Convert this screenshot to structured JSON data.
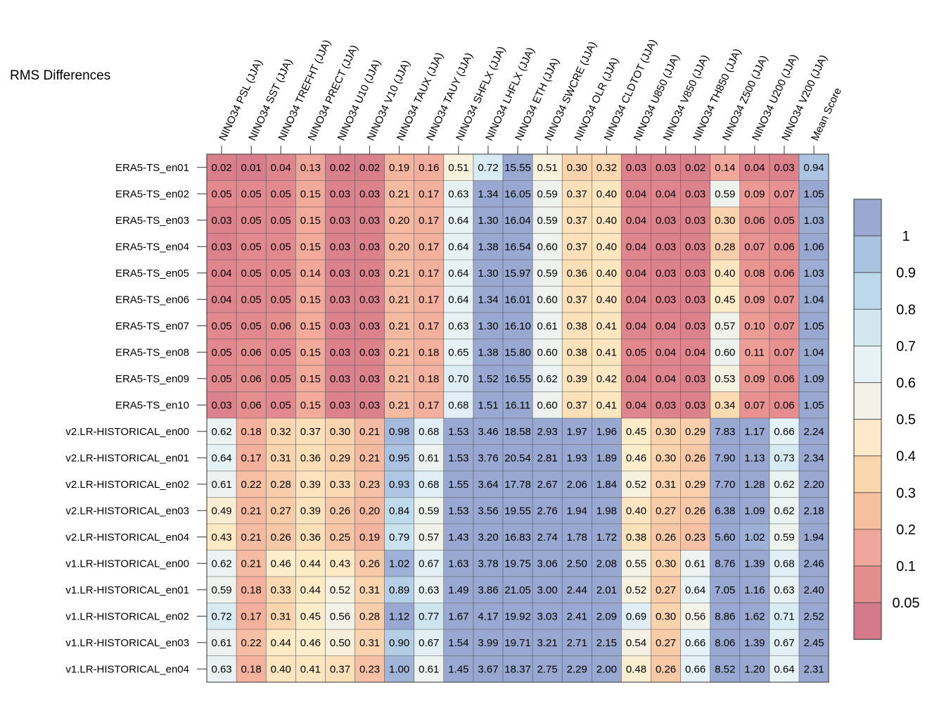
{
  "chart_data": {
    "type": "heatmap",
    "title": "RMS Differences",
    "columns": [
      "NINO34 PSL (JJA)",
      "NINO34 SST (JJA)",
      "NINO34 TREFHT (JJA)",
      "NINO34 PRECT (JJA)",
      "NINO34 U10 (JJA)",
      "NINO34 V10 (JJA)",
      "NINO34 TAUX (JJA)",
      "NINO34 TAUY (JJA)",
      "NINO34 SHFLX (JJA)",
      "NINO34 LHFLX (JJA)",
      "NINO34 ETH (JJA)",
      "NINO34 SWCRE (JJA)",
      "NINO34 OLR (JJA)",
      "NINO34 CLDTOT (JJA)",
      "NINO34 U850 (JJA)",
      "NINO34 V850 (JJA)",
      "NINO34 TH850 (JJA)",
      "NINO34 Z500 (JJA)",
      "NINO34 U200 (JJA)",
      "NINO34 V200 (JJA)",
      "Mean Score"
    ],
    "rows": [
      "ERA5-TS_en01",
      "ERA5-TS_en02",
      "ERA5-TS_en03",
      "ERA5-TS_en04",
      "ERA5-TS_en05",
      "ERA5-TS_en06",
      "ERA5-TS_en07",
      "ERA5-TS_en08",
      "ERA5-TS_en09",
      "ERA5-TS_en10",
      "v2.LR-HISTORICAL_en00",
      "v2.LR-HISTORICAL_en01",
      "v2.LR-HISTORICAL_en02",
      "v2.LR-HISTORICAL_en03",
      "v2.LR-HISTORICAL_en04",
      "v1.LR-HISTORICAL_en00",
      "v1.LR-HISTORICAL_en01",
      "v1.LR-HISTORICAL_en02",
      "v1.LR-HISTORICAL_en03",
      "v1.LR-HISTORICAL_en04"
    ],
    "values": [
      [
        "0.02",
        "0.01",
        "0.04",
        "0.13",
        "0.02",
        "0.02",
        "0.19",
        "0.16",
        "0.51",
        "0.72",
        "15.55",
        "0.51",
        "0.30",
        "0.32",
        "0.03",
        "0.03",
        "0.02",
        "0.14",
        "0.04",
        "0.03",
        "0.94"
      ],
      [
        "0.05",
        "0.05",
        "0.05",
        "0.15",
        "0.03",
        "0.03",
        "0.21",
        "0.17",
        "0.63",
        "1.34",
        "16.05",
        "0.59",
        "0.37",
        "0.40",
        "0.04",
        "0.04",
        "0.03",
        "0.59",
        "0.09",
        "0.07",
        "1.05"
      ],
      [
        "0.03",
        "0.05",
        "0.05",
        "0.15",
        "0.03",
        "0.03",
        "0.20",
        "0.17",
        "0.64",
        "1.30",
        "16.04",
        "0.59",
        "0.37",
        "0.40",
        "0.04",
        "0.03",
        "0.03",
        "0.30",
        "0.06",
        "0.05",
        "1.03"
      ],
      [
        "0.03",
        "0.05",
        "0.05",
        "0.15",
        "0.03",
        "0.03",
        "0.20",
        "0.17",
        "0.64",
        "1.38",
        "16.54",
        "0.60",
        "0.37",
        "0.40",
        "0.04",
        "0.03",
        "0.03",
        "0.28",
        "0.07",
        "0.06",
        "1.06"
      ],
      [
        "0.04",
        "0.05",
        "0.05",
        "0.14",
        "0.03",
        "0.03",
        "0.21",
        "0.17",
        "0.64",
        "1.30",
        "15.97",
        "0.59",
        "0.36",
        "0.40",
        "0.04",
        "0.03",
        "0.03",
        "0.40",
        "0.08",
        "0.06",
        "1.03"
      ],
      [
        "0.04",
        "0.05",
        "0.05",
        "0.15",
        "0.03",
        "0.03",
        "0.21",
        "0.17",
        "0.64",
        "1.34",
        "16.01",
        "0.60",
        "0.37",
        "0.40",
        "0.04",
        "0.03",
        "0.03",
        "0.45",
        "0.09",
        "0.07",
        "1.04"
      ],
      [
        "0.05",
        "0.05",
        "0.06",
        "0.15",
        "0.03",
        "0.03",
        "0.21",
        "0.17",
        "0.63",
        "1.30",
        "16.10",
        "0.61",
        "0.38",
        "0.41",
        "0.04",
        "0.04",
        "0.03",
        "0.57",
        "0.10",
        "0.07",
        "1.05"
      ],
      [
        "0.05",
        "0.06",
        "0.05",
        "0.15",
        "0.03",
        "0.03",
        "0.21",
        "0.18",
        "0.65",
        "1.38",
        "15.80",
        "0.60",
        "0.38",
        "0.41",
        "0.05",
        "0.04",
        "0.04",
        "0.60",
        "0.11",
        "0.07",
        "1.04"
      ],
      [
        "0.05",
        "0.06",
        "0.05",
        "0.15",
        "0.03",
        "0.03",
        "0.21",
        "0.18",
        "0.70",
        "1.52",
        "16.55",
        "0.62",
        "0.39",
        "0.42",
        "0.04",
        "0.04",
        "0.03",
        "0.53",
        "0.09",
        "0.06",
        "1.09"
      ],
      [
        "0.03",
        "0.06",
        "0.05",
        "0.15",
        "0.03",
        "0.03",
        "0.21",
        "0.17",
        "0.68",
        "1.51",
        "16.11",
        "0.60",
        "0.37",
        "0.41",
        "0.04",
        "0.03",
        "0.03",
        "0.34",
        "0.07",
        "0.06",
        "1.05"
      ],
      [
        "0.62",
        "0.18",
        "0.32",
        "0.37",
        "0.30",
        "0.21",
        "0.98",
        "0.68",
        "1.53",
        "3.46",
        "18.58",
        "2.93",
        "1.97",
        "1.96",
        "0.45",
        "0.30",
        "0.29",
        "7.83",
        "1.17",
        "0.66",
        "2.24"
      ],
      [
        "0.64",
        "0.17",
        "0.31",
        "0.36",
        "0.29",
        "0.21",
        "0.95",
        "0.61",
        "1.53",
        "3.76",
        "20.54",
        "2.81",
        "1.93",
        "1.89",
        "0.46",
        "0.30",
        "0.26",
        "7.90",
        "1.13",
        "0.73",
        "2.34"
      ],
      [
        "0.61",
        "0.22",
        "0.28",
        "0.39",
        "0.33",
        "0.23",
        "0.93",
        "0.68",
        "1.55",
        "3.64",
        "17.78",
        "2.67",
        "2.06",
        "1.84",
        "0.52",
        "0.31",
        "0.29",
        "7.70",
        "1.28",
        "0.62",
        "2.20"
      ],
      [
        "0.49",
        "0.21",
        "0.27",
        "0.39",
        "0.26",
        "0.20",
        "0.84",
        "0.59",
        "1.53",
        "3.56",
        "19.55",
        "2.76",
        "1.94",
        "1.98",
        "0.40",
        "0.27",
        "0.26",
        "6.38",
        "1.09",
        "0.62",
        "2.18"
      ],
      [
        "0.43",
        "0.21",
        "0.26",
        "0.36",
        "0.25",
        "0.19",
        "0.79",
        "0.57",
        "1.43",
        "3.20",
        "16.83",
        "2.74",
        "1.78",
        "1.72",
        "0.38",
        "0.26",
        "0.23",
        "5.60",
        "1.02",
        "0.59",
        "1.94"
      ],
      [
        "0.62",
        "0.21",
        "0.46",
        "0.44",
        "0.43",
        "0.26",
        "1.02",
        "0.67",
        "1.63",
        "3.78",
        "19.75",
        "3.06",
        "2.50",
        "2.08",
        "0.55",
        "0.30",
        "0.61",
        "8.76",
        "1.39",
        "0.68",
        "2.46"
      ],
      [
        "0.59",
        "0.18",
        "0.33",
        "0.44",
        "0.52",
        "0.31",
        "0.89",
        "0.63",
        "1.49",
        "3.86",
        "21.05",
        "3.00",
        "2.44",
        "2.01",
        "0.52",
        "0.27",
        "0.64",
        "7.05",
        "1.16",
        "0.63",
        "2.40"
      ],
      [
        "0.72",
        "0.17",
        "0.31",
        "0.45",
        "0.56",
        "0.28",
        "1.12",
        "0.77",
        "1.67",
        "4.17",
        "19.92",
        "3.03",
        "2.41",
        "2.09",
        "0.69",
        "0.30",
        "0.56",
        "8.86",
        "1.62",
        "0.71",
        "2.52"
      ],
      [
        "0.61",
        "0.22",
        "0.44",
        "0.46",
        "0.50",
        "0.31",
        "0.90",
        "0.67",
        "1.54",
        "3.99",
        "19.71",
        "3.21",
        "2.71",
        "2.15",
        "0.54",
        "0.27",
        "0.66",
        "8.06",
        "1.39",
        "0.67",
        "2.45"
      ],
      [
        "0.63",
        "0.18",
        "0.40",
        "0.41",
        "0.37",
        "0.23",
        "1.00",
        "0.61",
        "1.45",
        "3.67",
        "18.37",
        "2.75",
        "2.29",
        "2.00",
        "0.48",
        "0.26",
        "0.66",
        "8.52",
        "1.20",
        "0.64",
        "2.31"
      ]
    ],
    "colorbar": {
      "labels": [
        "1",
        "0.9",
        "0.8",
        "0.7",
        "0.6",
        "0.5",
        "0.4",
        "0.3",
        "0.2",
        "0.1",
        "0.05"
      ],
      "colors_top_to_bottom": [
        "#98a8d0",
        "#a9c2e0",
        "#bcd8ea",
        "#d2e8f1",
        "#e6f2f6",
        "#f3f2e8",
        "#fde9c9",
        "#fad6ad",
        "#f6c09f",
        "#f0a69a",
        "#e48d8e",
        "#d47a8b"
      ]
    }
  }
}
